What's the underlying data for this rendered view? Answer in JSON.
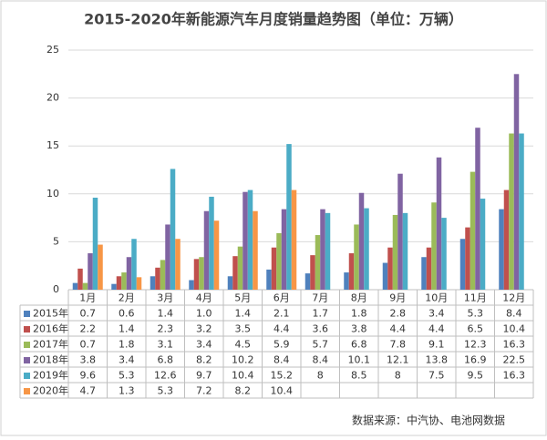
{
  "chart_data": {
    "type": "bar",
    "title": "2015-2020年新能源汽车月度销量趋势图（单位：万辆）",
    "categories": [
      "1月",
      "2月",
      "3月",
      "4月",
      "5月",
      "6月",
      "7月",
      "8月",
      "9月",
      "10月",
      "11月",
      "12月"
    ],
    "series": [
      {
        "name": "2015年",
        "color": "#4f81bd",
        "values": [
          0.7,
          0.6,
          1.4,
          1.0,
          1.4,
          2.1,
          1.7,
          1.8,
          2.8,
          3.4,
          5.3,
          8.4
        ],
        "value_labels": [
          "0.7",
          "0.6",
          "1.4",
          "1.0",
          "1.4",
          "2.1",
          "1.7",
          "1.8",
          "2.8",
          "3.4",
          "5.3",
          "8.4"
        ]
      },
      {
        "name": "2016年",
        "color": "#c0504d",
        "values": [
          2.2,
          1.4,
          2.3,
          3.2,
          3.5,
          4.4,
          3.6,
          3.8,
          4.4,
          4.4,
          6.5,
          10.4
        ]
      },
      {
        "name": "2017年",
        "color": "#9bbb59",
        "values": [
          0.7,
          1.8,
          3.1,
          3.4,
          4.5,
          5.9,
          5.7,
          6.8,
          7.8,
          9.1,
          12.3,
          16.3
        ]
      },
      {
        "name": "2018年",
        "color": "#8064a2",
        "values": [
          3.8,
          3.4,
          6.8,
          8.2,
          10.2,
          8.4,
          8.4,
          10.1,
          12.1,
          13.8,
          16.9,
          22.5
        ]
      },
      {
        "name": "2019年",
        "color": "#4bacc6",
        "values": [
          9.6,
          5.3,
          12.6,
          9.7,
          10.4,
          15.2,
          8,
          8.5,
          8,
          7.5,
          9.5,
          16.3
        ]
      },
      {
        "name": "2020年",
        "color": "#f79646",
        "values": [
          4.7,
          1.3,
          5.3,
          7.2,
          8.2,
          10.4,
          null,
          null,
          null,
          null,
          null,
          null
        ]
      }
    ],
    "ylim": [
      0,
      25
    ],
    "yticks": [
      0,
      5,
      10,
      15,
      20,
      25
    ],
    "grid": true,
    "source": "数据来源：中汽协、电池网数据"
  }
}
